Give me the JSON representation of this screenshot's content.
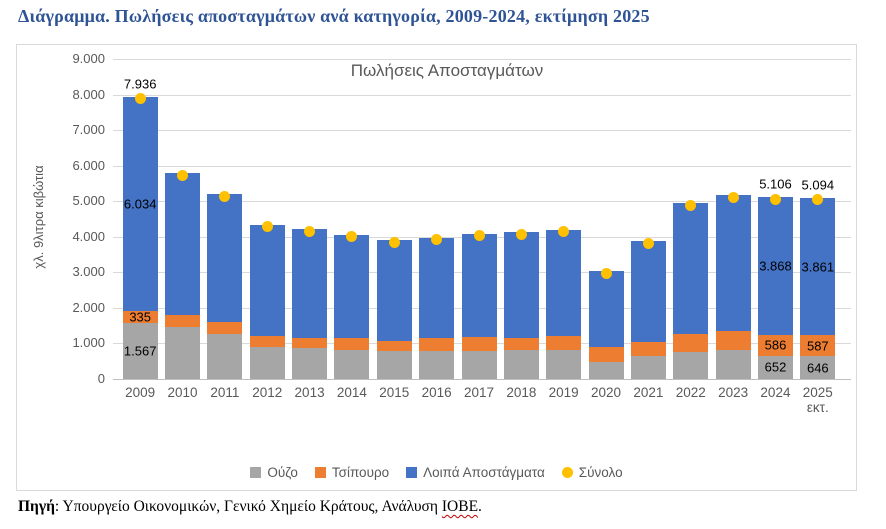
{
  "doc": {
    "title": "Διάγραμμα. Πωλήσεις αποσταγμάτων ανά κατηγορία, 2009-2024, εκτίμηση 2025",
    "source": {
      "label": "Πηγή",
      "body": ": Υπουργείο Οικονομικών, Γενικό Χημείο Κράτους, Ανάλυση ",
      "flagged_word": "ΙΟΒΕ",
      "suffix": "."
    }
  },
  "chart_data": {
    "type": "bar",
    "stacked": true,
    "title": "Πωλήσεις Αποσταγμάτων",
    "ylabel": "χλ. 9λιτρα κιβώτια",
    "ylim": [
      0,
      9000
    ],
    "ytick_step": 1000,
    "ytick_labels": [
      "0",
      "1.000",
      "2.000",
      "3.000",
      "4.000",
      "5.000",
      "6.000",
      "7.000",
      "8.000",
      "9.000"
    ],
    "grid": true,
    "legend_position": "bottom",
    "categories": [
      "2009",
      "2010",
      "2011",
      "2012",
      "2013",
      "2014",
      "2015",
      "2016",
      "2017",
      "2018",
      "2019",
      "2020",
      "2021",
      "2022",
      "2023",
      "2024",
      "2025"
    ],
    "last_category_sublabel": "εκτ.",
    "series": [
      {
        "name": "Ούζο",
        "color": "#A6A6A6",
        "values": [
          1567,
          1450,
          1280,
          890,
          870,
          820,
          800,
          780,
          800,
          820,
          830,
          490,
          660,
          770,
          820,
          652,
          646
        ]
      },
      {
        "name": "Τσίπουρο",
        "color": "#ED7D31",
        "values": [
          335,
          355,
          330,
          330,
          270,
          320,
          265,
          380,
          390,
          345,
          380,
          420,
          370,
          500,
          530,
          586,
          587
        ]
      },
      {
        "name": "Λοιπά Αποστάγματα",
        "color": "#4472C4",
        "values": [
          6034,
          3980,
          3590,
          3115,
          3070,
          2920,
          2840,
          2820,
          2900,
          2965,
          2990,
          2120,
          2840,
          3680,
          3820,
          3868,
          3861
        ]
      },
      {
        "name": "Σύνολο",
        "type": "point",
        "color": "#FFC000",
        "values": [
          7936,
          5785,
          5200,
          4335,
          4210,
          4060,
          3905,
          3980,
          4090,
          4130,
          4200,
          3030,
          3870,
          4950,
          5170,
          5106,
          5094
        ]
      }
    ],
    "data_labels": [
      {
        "index": 0,
        "segment_labels": [
          "1.567",
          "335",
          "6.034"
        ],
        "total_label": "7.936"
      },
      {
        "index": 15,
        "segment_labels": [
          "652",
          "586",
          "3.868"
        ],
        "total_label": "5.106"
      },
      {
        "index": 16,
        "segment_labels": [
          "646",
          "587",
          "3.861"
        ],
        "total_label": "5.094"
      }
    ]
  },
  "colors": {
    "ouzo": "#A6A6A6",
    "tsipouro": "#ED7D31",
    "other_spirits": "#4472C4",
    "total": "#FFC000",
    "gridline": "#D9D9D9",
    "axis_text": "#595959",
    "doc_title": "#2F5496",
    "spellcheck_underline": "#C00000"
  }
}
